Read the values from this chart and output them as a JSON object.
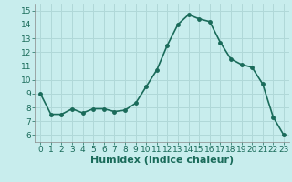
{
  "x": [
    0,
    1,
    2,
    3,
    4,
    5,
    6,
    7,
    8,
    9,
    10,
    11,
    12,
    13,
    14,
    15,
    16,
    17,
    18,
    19,
    20,
    21,
    22,
    23
  ],
  "y": [
    9.0,
    7.5,
    7.5,
    7.9,
    7.6,
    7.9,
    7.9,
    7.7,
    7.8,
    8.3,
    9.5,
    10.7,
    12.5,
    14.0,
    14.7,
    14.4,
    14.2,
    12.7,
    11.5,
    11.1,
    10.9,
    9.7,
    7.3,
    6.0
  ],
  "line_color": "#1a6b5a",
  "bg_color": "#c8eded",
  "grid_color": "#b0d8d8",
  "xlabel": "Humidex (Indice chaleur)",
  "ylim": [
    5.5,
    15.5
  ],
  "xlim": [
    -0.5,
    23.5
  ],
  "yticks": [
    6,
    7,
    8,
    9,
    10,
    11,
    12,
    13,
    14,
    15
  ],
  "xticks": [
    0,
    1,
    2,
    3,
    4,
    5,
    6,
    7,
    8,
    9,
    10,
    11,
    12,
    13,
    14,
    15,
    16,
    17,
    18,
    19,
    20,
    21,
    22,
    23
  ],
  "marker_size": 2.5,
  "line_width": 1.2,
  "xlabel_fontsize": 8,
  "tick_fontsize": 6.5
}
